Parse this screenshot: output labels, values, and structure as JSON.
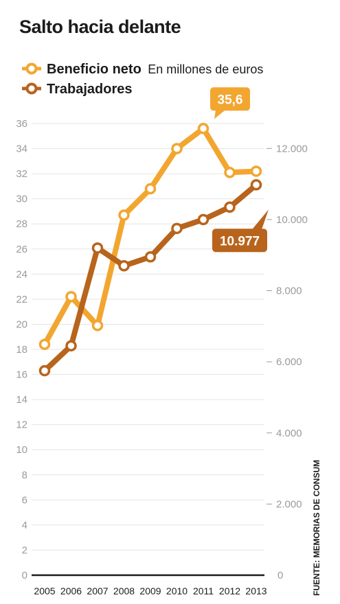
{
  "title": "Salto hacia delante",
  "source": "FUENTE: MEMORIAS DE CONSUM",
  "colors": {
    "beneficio": "#f2a630",
    "trabajadores": "#b8641c",
    "grid": "#e4e4e4",
    "axis": "#1b1b1b",
    "tick": "#9a9a9a"
  },
  "chart_data": {
    "type": "line",
    "title": "Salto hacia delante",
    "categories": [
      "2005",
      "2006",
      "2007",
      "2008",
      "2009",
      "2010",
      "2011",
      "2012",
      "2013"
    ],
    "series": [
      {
        "name": "Beneficio neto",
        "subtitle": "En millones de euros",
        "axis": "left",
        "values": [
          18.4,
          22.2,
          19.9,
          28.7,
          30.8,
          34.0,
          35.6,
          32.1,
          32.2
        ],
        "color": "#f2a630"
      },
      {
        "name": "Trabajadores",
        "axis": "right",
        "values": [
          5750,
          6450,
          9200,
          8700,
          8950,
          9750,
          10000,
          10350,
          10977
        ],
        "color": "#b8641c"
      }
    ],
    "left_axis": {
      "min": 0,
      "max": 36,
      "ticks": [
        "0",
        "2",
        "4",
        "6",
        "8",
        "10",
        "12",
        "14",
        "16",
        "18",
        "20",
        "22",
        "24",
        "26",
        "28",
        "30",
        "32",
        "34",
        "36"
      ]
    },
    "right_axis": {
      "min": 0,
      "max": 12700,
      "ticks": [
        "0",
        "2.000",
        "4.000",
        "6.000",
        "8.000",
        "10.000",
        "12.000"
      ]
    },
    "annotations": [
      {
        "text": "35,6",
        "series": 0,
        "category": "2011"
      },
      {
        "text": "10.977",
        "series": 1,
        "category": "2013"
      }
    ],
    "grid": true,
    "legend_position": "top-left"
  }
}
